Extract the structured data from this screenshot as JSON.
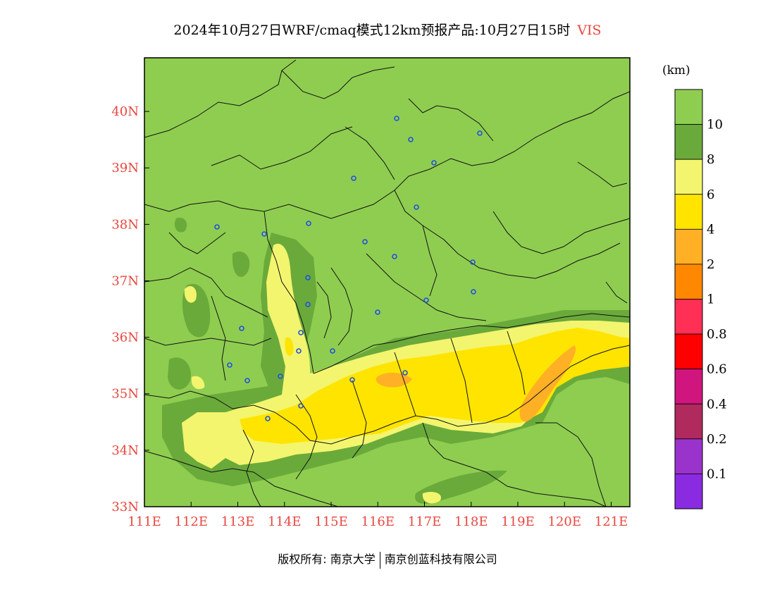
{
  "title": {
    "main": "2024年10月27日WRF/cmaq模式12km预报产品:10月27日15时",
    "variable": "VIS"
  },
  "map": {
    "lon_labels": [
      "111E",
      "112E",
      "113E",
      "114E",
      "115E",
      "116E",
      "117E",
      "118E",
      "119E",
      "120E",
      "121E"
    ],
    "lat_labels": [
      "40N",
      "39N",
      "38N",
      "37N",
      "36N",
      "35N",
      "34N",
      "33N"
    ],
    "lon_range": [
      111,
      121.4
    ],
    "lat_range": [
      33,
      40.95
    ],
    "label_color": "#e8463f",
    "background_color": "#8fcd50",
    "city_marker_color": "#2050e0"
  },
  "legend": {
    "unit": "(km)",
    "levels": [
      {
        "label": "10",
        "color": "#8fcd50"
      },
      {
        "label": "8",
        "color": "#6aaa3a"
      },
      {
        "label": "6",
        "color": "#f3f56e"
      },
      {
        "label": "4",
        "color": "#ffe400"
      },
      {
        "label": "2",
        "color": "#ffb025"
      },
      {
        "label": "1",
        "color": "#ff8800"
      },
      {
        "label": "0.8",
        "color": "#ff2f55"
      },
      {
        "label": "0.6",
        "color": "#ff0000"
      },
      {
        "label": "0.4",
        "color": "#d0157f"
      },
      {
        "label": "0.2",
        "color": "#b02a5e"
      },
      {
        "label": "0.1",
        "color": "#9a33cc"
      },
      {
        "label": "",
        "color": "#8a2be2"
      }
    ]
  },
  "footer": {
    "owner": "版权所有: 南京大学",
    "company": "南京创蓝科技有限公司"
  }
}
